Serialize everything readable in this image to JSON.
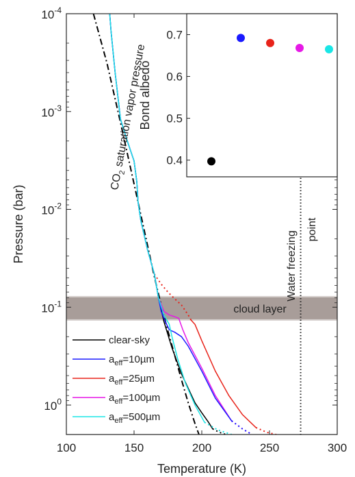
{
  "chart_data": [
    {
      "type": "line",
      "xlabel": "Temperature (K)",
      "ylabel": "Pressure (bar)",
      "xlim": [
        100,
        300
      ],
      "ylim": [
        0.0001,
        2
      ],
      "y_scale": "log",
      "y_reversed": true,
      "xticks": [
        100,
        150,
        200,
        250,
        300
      ],
      "yticks": [
        {
          "value": 0.0001,
          "base": "10",
          "exp": "-4"
        },
        {
          "value": 0.001,
          "base": "10",
          "exp": "-3"
        },
        {
          "value": 0.01,
          "base": "10",
          "exp": "-2"
        },
        {
          "value": 0.1,
          "base": "10",
          "exp": "-1"
        },
        {
          "value": 1,
          "base": "10",
          "exp": "0"
        }
      ],
      "grid": false,
      "legend_position": "bottom-left",
      "band": {
        "label": "cloud layer",
        "p_top": 0.078,
        "p_bottom": 0.135,
        "color": "#a89d99"
      },
      "annotations": [
        {
          "id": "co2",
          "text_before": "CO",
          "sub": "2",
          "text_after": " saturation vapor pressure"
        },
        {
          "id": "water1",
          "text": "Water freezing"
        },
        {
          "id": "water2",
          "text": "point"
        }
      ],
      "water_freezing_T": 273,
      "co2_curve": {
        "color": "#000000",
        "T": [
          120,
          130,
          140,
          150,
          160,
          165,
          170,
          175,
          180,
          185,
          190,
          195,
          200
        ],
        "p": [
          0.0001,
          0.00032,
          0.0013,
          0.0055,
          0.0235,
          0.049,
          0.095,
          0.175,
          0.31,
          0.55,
          0.95,
          1.55,
          2.4
        ]
      },
      "series": [
        {
          "name": "clear-sky",
          "sub": "",
          "color": "#000000",
          "solid_T": [
            132,
            133,
            136,
            140,
            145,
            150,
            152,
            153,
            155,
            160,
            165,
            168,
            172,
            178,
            185,
            195,
            200,
            205,
            208
          ],
          "solid_p": [
            0.0001,
            0.00015,
            0.0004,
            0.0012,
            0.002,
            0.0032,
            0.0052,
            0.0085,
            0.013,
            0.026,
            0.046,
            0.08,
            0.14,
            0.26,
            0.48,
            0.95,
            1.2,
            1.5,
            1.75
          ],
          "dot_T": [
            208,
            213,
            218
          ],
          "dot_p": [
            1.75,
            1.9,
            2.0
          ]
        },
        {
          "name": "a",
          "sub": "eff",
          "suffix": "=10µm",
          "color": "#1a1aff",
          "solid_T": [
            132,
            133,
            136,
            140,
            145,
            150,
            152,
            153,
            155,
            160,
            165,
            168,
            170,
            173,
            176,
            180,
            185,
            190,
            200,
            210,
            222
          ],
          "solid_p": [
            0.0001,
            0.00015,
            0.0004,
            0.0012,
            0.002,
            0.0032,
            0.0052,
            0.0085,
            0.013,
            0.026,
            0.046,
            0.08,
            0.11,
            0.14,
            0.17,
            0.18,
            0.2,
            0.25,
            0.45,
            0.85,
            1.45
          ],
          "dot_T": [
            222,
            230,
            237
          ],
          "dot_p": [
            1.45,
            1.75,
            2.0
          ]
        },
        {
          "name": "a",
          "sub": "eff",
          "suffix": "=25µm",
          "color": "#e8231a",
          "solid_T": [
            192,
            195,
            200,
            210,
            220,
            230,
            240
          ],
          "solid_p": [
            0.135,
            0.15,
            0.22,
            0.45,
            0.8,
            1.25,
            1.7
          ],
          "dot_T": [
            240,
            248,
            255
          ],
          "dot_p": [
            1.7,
            1.9,
            2.0
          ],
          "upper_dot_T": [
            165,
            170,
            175,
            180,
            185,
            190,
            192
          ],
          "upper_dot_p": [
            0.046,
            0.058,
            0.07,
            0.082,
            0.095,
            0.12,
            0.135
          ]
        },
        {
          "name": "a",
          "sub": "eff",
          "suffix": "=100µm",
          "color": "#e619e6",
          "solid_T": [
            132,
            133,
            136,
            140,
            145,
            150,
            152,
            153,
            155,
            160,
            165,
            168,
            172,
            176,
            180,
            183,
            186,
            190,
            200,
            210,
            222
          ],
          "solid_p": [
            0.0001,
            0.00015,
            0.0004,
            0.0012,
            0.002,
            0.0032,
            0.0052,
            0.0085,
            0.013,
            0.026,
            0.046,
            0.08,
            0.11,
            0.12,
            0.125,
            0.13,
            0.17,
            0.23,
            0.42,
            0.8,
            1.45
          ],
          "dot_T": [
            222,
            230,
            237
          ],
          "dot_p": [
            1.45,
            1.75,
            2.0
          ]
        },
        {
          "name": "a",
          "sub": "eff",
          "suffix": "=500µm",
          "color": "#19e6e6",
          "solid_T": [
            132,
            133,
            136,
            140,
            145,
            150,
            152,
            153,
            155,
            160,
            165,
            168,
            172,
            176,
            178,
            182,
            188,
            195,
            202
          ],
          "solid_p": [
            0.0001,
            0.00015,
            0.0004,
            0.0012,
            0.002,
            0.0032,
            0.0052,
            0.0085,
            0.013,
            0.026,
            0.046,
            0.08,
            0.12,
            0.15,
            0.2,
            0.33,
            0.6,
            1.0,
            1.5
          ],
          "dot_T": [
            202,
            212,
            222
          ],
          "dot_p": [
            1.5,
            1.8,
            2.0
          ]
        }
      ]
    },
    {
      "type": "scatter",
      "ylabel": "Bond albedo",
      "ylim": [
        0.36,
        0.75
      ],
      "yticks": [
        0.4,
        0.5,
        0.6,
        0.7
      ],
      "ytick_labels": [
        "0.4",
        "0.5",
        "0.6",
        "0.7"
      ],
      "points": [
        {
          "x": 1,
          "y": 0.397,
          "color": "#000000"
        },
        {
          "x": 2,
          "y": 0.692,
          "color": "#1a1aff"
        },
        {
          "x": 3,
          "y": 0.68,
          "color": "#e8231a"
        },
        {
          "x": 4,
          "y": 0.668,
          "color": "#e619e6"
        },
        {
          "x": 5,
          "y": 0.665,
          "color": "#19e6e6"
        }
      ]
    }
  ]
}
